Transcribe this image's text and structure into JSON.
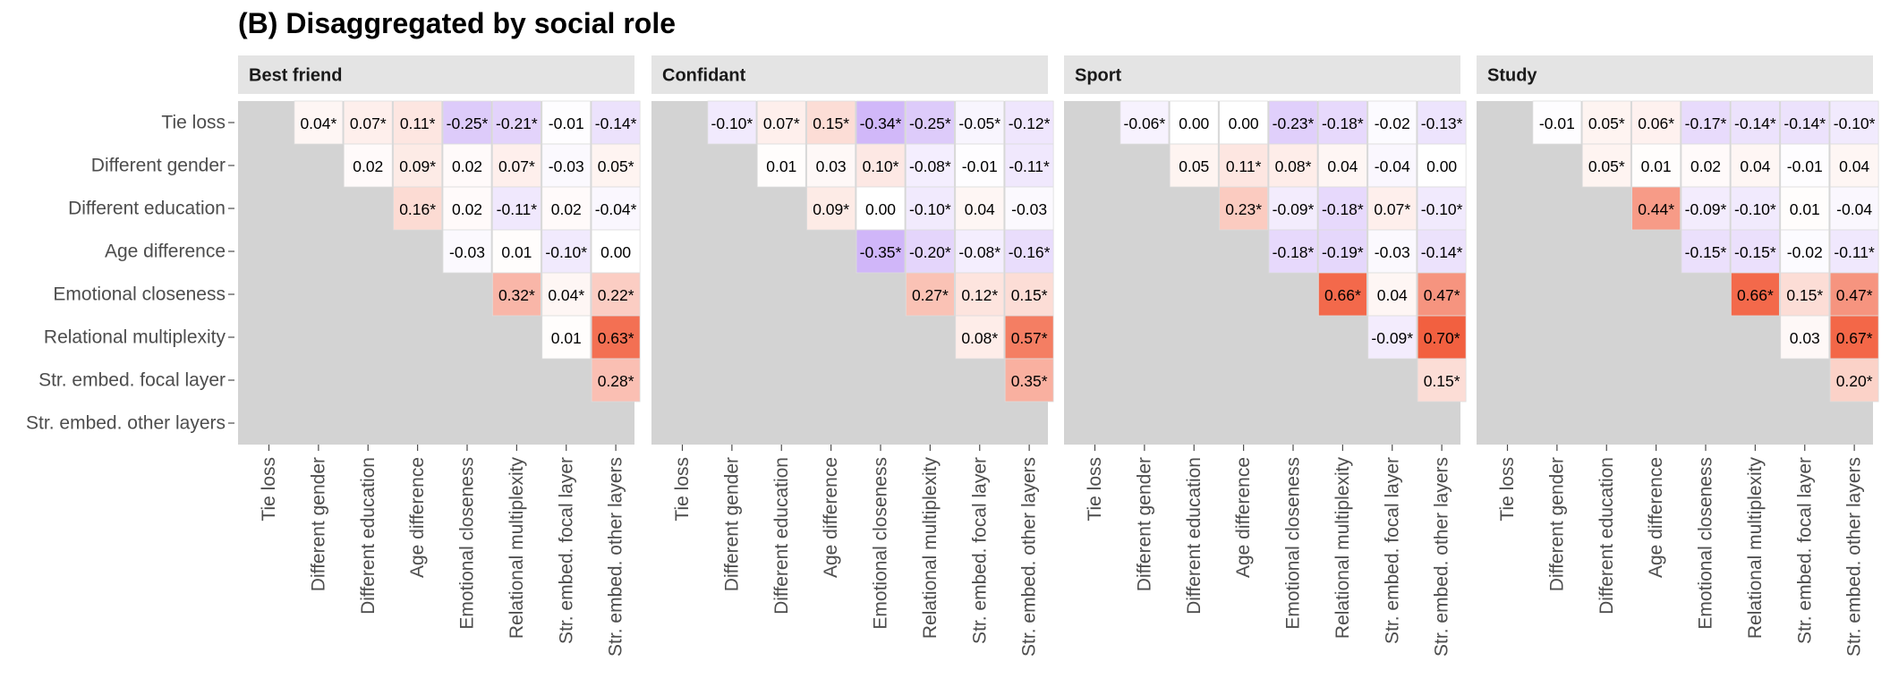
{
  "title": "(B) Disaggregated by social role",
  "colors": {
    "negative": "#a06cf2",
    "positive": "#f26040",
    "neutral": "#ffffff",
    "panel_background": "#d3d3d3",
    "strip_background": "#e4e4e4"
  },
  "chart_data": {
    "type": "heatmap",
    "variables": [
      "Tie loss",
      "Different gender",
      "Different education",
      "Age difference",
      "Emotional closeness",
      "Relational multiplexity",
      "Str. embed. focal layer",
      "Str. embed. other layers"
    ],
    "color_scale_limit": 0.7,
    "panels": [
      {
        "name": "Best friend",
        "cells": [
          [
            "",
            "0.04*",
            "0.07*",
            "0.11*",
            "-0.25*",
            "-0.21*",
            "-0.01",
            "-0.14*"
          ],
          [
            "",
            "",
            "0.02",
            "0.09*",
            "0.02",
            "0.07*",
            "-0.03",
            "0.05*"
          ],
          [
            "",
            "",
            "",
            "0.16*",
            "0.02",
            "-0.11*",
            "0.02",
            "-0.04*"
          ],
          [
            "",
            "",
            "",
            "",
            "-0.03",
            "0.01",
            "-0.10*",
            "0.00"
          ],
          [
            "",
            "",
            "",
            "",
            "",
            "0.32*",
            "0.04*",
            "0.22*"
          ],
          [
            "",
            "",
            "",
            "",
            "",
            "",
            "0.01",
            "0.63*"
          ],
          [
            "",
            "",
            "",
            "",
            "",
            "",
            "",
            "0.28*"
          ],
          [
            "",
            "",
            "",
            "",
            "",
            "",
            "",
            ""
          ]
        ]
      },
      {
        "name": "Confidant",
        "cells": [
          [
            "",
            "-0.10*",
            "0.07*",
            "0.15*",
            "-0.34*",
            "-0.25*",
            "-0.05*",
            "-0.12*"
          ],
          [
            "",
            "",
            "0.01",
            "0.03",
            "0.10*",
            "-0.08*",
            "-0.01",
            "-0.11*"
          ],
          [
            "",
            "",
            "",
            "0.09*",
            "0.00",
            "-0.10*",
            "0.04",
            "-0.03"
          ],
          [
            "",
            "",
            "",
            "",
            "-0.35*",
            "-0.20*",
            "-0.08*",
            "-0.16*"
          ],
          [
            "",
            "",
            "",
            "",
            "",
            "0.27*",
            "0.12*",
            "0.15*"
          ],
          [
            "",
            "",
            "",
            "",
            "",
            "",
            "0.08*",
            "0.57*"
          ],
          [
            "",
            "",
            "",
            "",
            "",
            "",
            "",
            "0.35*"
          ],
          [
            "",
            "",
            "",
            "",
            "",
            "",
            "",
            ""
          ]
        ]
      },
      {
        "name": "Sport",
        "cells": [
          [
            "",
            "-0.06*",
            "0.00",
            "0.00",
            "-0.23*",
            "-0.18*",
            "-0.02",
            "-0.13*"
          ],
          [
            "",
            "",
            "0.05",
            "0.11*",
            "0.08*",
            "0.04",
            "-0.04",
            "0.00"
          ],
          [
            "",
            "",
            "",
            "0.23*",
            "-0.09*",
            "-0.18*",
            "0.07*",
            "-0.10*"
          ],
          [
            "",
            "",
            "",
            "",
            "-0.18*",
            "-0.19*",
            "-0.03",
            "-0.14*"
          ],
          [
            "",
            "",
            "",
            "",
            "",
            "0.66*",
            "0.04",
            "0.47*"
          ],
          [
            "",
            "",
            "",
            "",
            "",
            "",
            "-0.09*",
            "0.70*"
          ],
          [
            "",
            "",
            "",
            "",
            "",
            "",
            "",
            "0.15*"
          ],
          [
            "",
            "",
            "",
            "",
            "",
            "",
            "",
            ""
          ]
        ]
      },
      {
        "name": "Study",
        "cells": [
          [
            "",
            "-0.01",
            "0.05*",
            "0.06*",
            "-0.17*",
            "-0.14*",
            "-0.14*",
            "-0.10*"
          ],
          [
            "",
            "",
            "0.05*",
            "0.01",
            "0.02",
            "0.04",
            "-0.01",
            "0.04"
          ],
          [
            "",
            "",
            "",
            "0.44*",
            "-0.09*",
            "-0.10*",
            "0.01",
            "-0.04"
          ],
          [
            "",
            "",
            "",
            "",
            "-0.15*",
            "-0.15*",
            "-0.02",
            "-0.11*"
          ],
          [
            "",
            "",
            "",
            "",
            "",
            "0.66*",
            "0.15*",
            "0.47*"
          ],
          [
            "",
            "",
            "",
            "",
            "",
            "",
            "0.03",
            "0.67*"
          ],
          [
            "",
            "",
            "",
            "",
            "",
            "",
            "",
            "0.20*"
          ],
          [
            "",
            "",
            "",
            "",
            "",
            "",
            "",
            ""
          ]
        ]
      }
    ]
  }
}
